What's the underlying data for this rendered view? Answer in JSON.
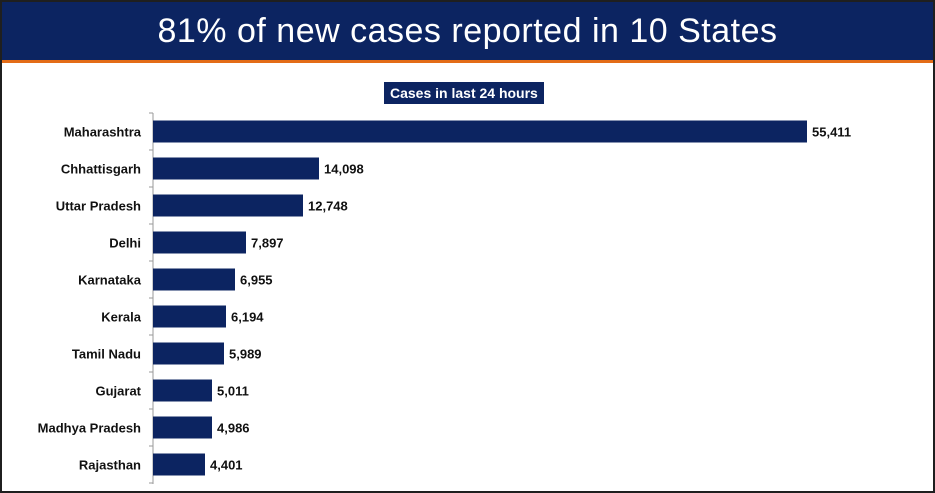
{
  "header": {
    "title": "81% of new cases reported in 10 States"
  },
  "colors": {
    "header_bg": "#0c2461",
    "accent_rule": "#e36c17",
    "bar": "#0c2461"
  },
  "chart_data": {
    "type": "bar",
    "orientation": "horizontal",
    "title": "Cases in last 24 hours",
    "xlabel": "",
    "ylabel": "",
    "categories": [
      "Maharashtra",
      "Chhattisgarh",
      "Uttar Pradesh",
      "Delhi",
      "Karnataka",
      "Kerala",
      "Tamil Nadu",
      "Gujarat",
      "Madhya Pradesh",
      "Rajasthan"
    ],
    "values": [
      55411,
      14098,
      12748,
      7897,
      6955,
      6194,
      5989,
      5011,
      4986,
      4401
    ],
    "value_labels": [
      "55,411",
      "14,098",
      "12,748",
      "7,897",
      "6,955",
      "6,194",
      "5,989",
      "5,011",
      "4,986",
      "4,401"
    ],
    "grid": false,
    "legend": "none"
  }
}
